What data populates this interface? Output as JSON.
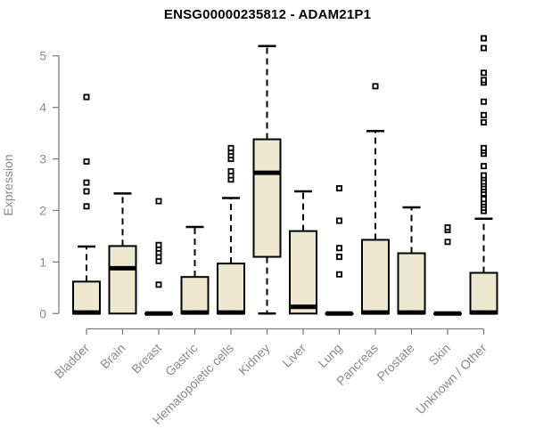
{
  "chart_data": {
    "type": "boxplot",
    "title": "ENSG00000235812 - ADAM21P1",
    "ylabel": "Expression",
    "xlabel": "",
    "ylim": [
      0,
      5.4
    ],
    "yticks": [
      0,
      1,
      2,
      3,
      4,
      5
    ],
    "grid": "off",
    "legend": "none",
    "colors": {
      "box_fill": "#EEE8D1",
      "box_stroke": "#000000",
      "median": "#000000",
      "whisker": "#000000",
      "outlier_stroke": "#000000",
      "outlier_fill": "#ffffff",
      "axis": "#808080",
      "tick_label": "#8a8a8a",
      "title": "#000000"
    },
    "series": [
      {
        "category": "Bladder",
        "low": 0,
        "q1": 0,
        "median": 0.02,
        "q3": 0.62,
        "high": 1.3,
        "outliers": [
          2.08,
          2.37,
          2.54,
          2.95,
          4.2
        ]
      },
      {
        "category": "Brain",
        "low": 0,
        "q1": 0,
        "median": 0.88,
        "q3": 1.31,
        "high": 2.33,
        "outliers": []
      },
      {
        "category": "Breast",
        "low": 0,
        "q1": 0,
        "median": 0,
        "q3": 0,
        "high": 0,
        "outliers": [
          0.56,
          1.02,
          1.1,
          1.18,
          1.26,
          1.33,
          2.18
        ]
      },
      {
        "category": "Gastric",
        "low": 0,
        "q1": 0,
        "median": 0.02,
        "q3": 0.71,
        "high": 1.68,
        "outliers": []
      },
      {
        "category": "Hematopoietic cells",
        "low": 0,
        "q1": 0,
        "median": 0.02,
        "q3": 0.97,
        "high": 2.24,
        "outliers": [
          2.6,
          2.68,
          2.76,
          3.0,
          3.07,
          3.14,
          3.21
        ]
      },
      {
        "category": "Kidney",
        "low": 0,
        "q1": 1.1,
        "median": 2.73,
        "q3": 3.38,
        "high": 5.19,
        "outliers": []
      },
      {
        "category": "Liver",
        "low": 0,
        "q1": 0,
        "median": 0.13,
        "q3": 1.6,
        "high": 2.37,
        "outliers": []
      },
      {
        "category": "Lung",
        "low": 0,
        "q1": 0,
        "median": 0,
        "q3": 0,
        "high": 0,
        "outliers": [
          0.76,
          1.1,
          1.27,
          1.8,
          2.43
        ]
      },
      {
        "category": "Pancreas",
        "low": 0,
        "q1": 0,
        "median": 0.02,
        "q3": 1.43,
        "high": 3.54,
        "outliers": [
          4.41
        ]
      },
      {
        "category": "Prostate",
        "low": 0,
        "q1": 0,
        "median": 0.02,
        "q3": 1.17,
        "high": 2.06,
        "outliers": []
      },
      {
        "category": "Skin",
        "low": 0,
        "q1": 0,
        "median": 0,
        "q3": 0,
        "high": 0,
        "outliers": [
          1.39,
          1.62,
          1.67
        ]
      },
      {
        "category": "Unknown / Other",
        "low": 0,
        "q1": 0,
        "median": 0.02,
        "q3": 0.79,
        "high": 1.84,
        "outliers": [
          1.99,
          2.05,
          2.11,
          2.16,
          2.22,
          2.33,
          2.4,
          2.45,
          2.51,
          2.56,
          2.63,
          2.68,
          2.86,
          3.1,
          3.16,
          3.21,
          3.71,
          3.85,
          4.11,
          4.48,
          4.53,
          4.67,
          5.15,
          5.34
        ]
      }
    ]
  }
}
